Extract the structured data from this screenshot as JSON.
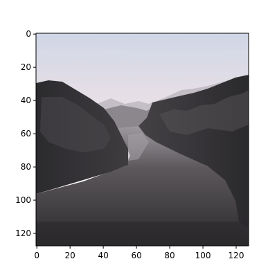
{
  "image": {
    "description_visible": "",
    "x_tick_labels": [
      "0",
      "20",
      "40",
      "60",
      "80",
      "100",
      "120"
    ],
    "y_tick_labels": [
      "0",
      "20",
      "40",
      "60",
      "80",
      "100",
      "120"
    ],
    "x_ticks": [
      0,
      20,
      40,
      60,
      80,
      100,
      120
    ],
    "y_ticks": [
      0,
      20,
      40,
      60,
      80,
      100,
      120
    ],
    "xlim": [
      -0.5,
      127.5
    ],
    "ylim": [
      127.5,
      -0.5
    ],
    "colors": {
      "sky_top": "#cfd6e6",
      "sky_bottom": "#e7dfe6",
      "mist": "#efe6e8",
      "cliff_dark": "#2f2e31",
      "cliff_mid": "#4a474a",
      "water_light": "#9d999e",
      "water_mid": "#5c585c",
      "water_dark": "#2c2a2d",
      "frame": "#000000"
    }
  }
}
